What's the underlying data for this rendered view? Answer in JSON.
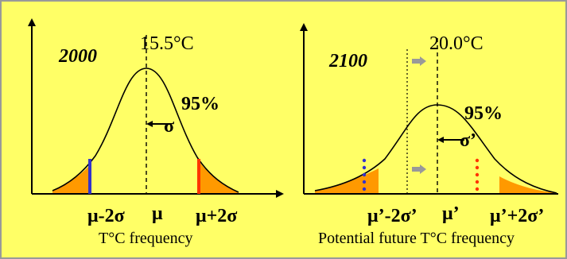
{
  "colors": {
    "background": "#ffff66",
    "frame": "#999999",
    "tail_fill": "#ff9900",
    "lower_marker": "#3333cc",
    "upper_marker": "#ff3300",
    "shift_arrow": "#999999"
  },
  "left_panel": {
    "year": "2000",
    "mean_temperature": "15.5°C",
    "percent": "95%",
    "sigma": "σ",
    "lower_label": "μ-2σ",
    "mean_label": "μ",
    "upper_label": "μ+2σ",
    "caption": "T°C frequency"
  },
  "right_panel": {
    "year": "2100",
    "mean_temperature": "20.0°C",
    "percent": "95%",
    "sigma": "σ’",
    "lower_label": "μ’-2σ’",
    "mean_label": "μ’",
    "upper_label": "μ’+2σ’",
    "caption": "Potential future T°C frequency"
  }
}
